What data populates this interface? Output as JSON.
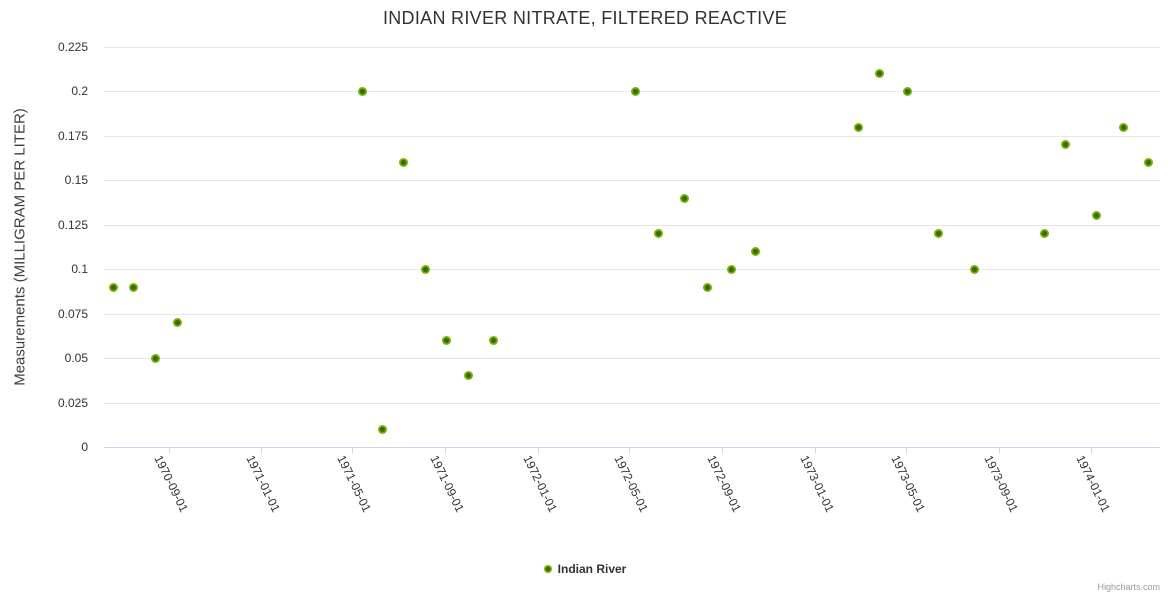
{
  "title": "INDIAN RIVER NITRATE, FILTERED REACTIVE",
  "legend": {
    "series_label": "Indian River"
  },
  "credit": "Highcharts.com",
  "colors": {
    "marker_outer": "#7cb302",
    "marker_inner": "#2f6b02",
    "gridline": "#e6e6e6",
    "axis_line": "#ccd6eb",
    "title_text": "#333333",
    "label_text": "#333333",
    "credit_text": "#9a9aa0"
  },
  "chart_data": {
    "type": "scatter",
    "title": "INDIAN RIVER NITRATE, FILTERED REACTIVE",
    "xlabel": "",
    "ylabel": "Measurements (MILLIGRAM PER LITER)",
    "ylim": [
      0,
      0.225
    ],
    "y_tick_interval": 0.025,
    "y_ticks": [
      {
        "value": 0,
        "label": "0"
      },
      {
        "value": 0.025,
        "label": "0.025"
      },
      {
        "value": 0.05,
        "label": "0.05"
      },
      {
        "value": 0.075,
        "label": "0.075"
      },
      {
        "value": 0.1,
        "label": "0.1"
      },
      {
        "value": 0.125,
        "label": "0.125"
      },
      {
        "value": 0.15,
        "label": "0.15"
      },
      {
        "value": 0.175,
        "label": "0.175"
      },
      {
        "value": 0.2,
        "label": "0.2"
      },
      {
        "value": 0.225,
        "label": "0.225"
      }
    ],
    "xlim": [
      "1970-06-07",
      "1974-04-02"
    ],
    "x_ticks": [
      "1970-09-01",
      "1971-01-01",
      "1971-05-01",
      "1971-09-01",
      "1972-01-01",
      "1972-05-01",
      "1972-09-01",
      "1973-01-01",
      "1973-05-01",
      "1973-09-01",
      "1974-01-01"
    ],
    "grid": "horizontal-only",
    "legend_position": "bottom-center",
    "series": [
      {
        "name": "Indian River",
        "points": [
          {
            "date": "1970-06-19",
            "value": 0.09
          },
          {
            "date": "1970-07-16",
            "value": 0.09
          },
          {
            "date": "1970-08-14",
            "value": 0.05
          },
          {
            "date": "1970-09-12",
            "value": 0.07
          },
          {
            "date": "1971-05-14",
            "value": 0.2
          },
          {
            "date": "1971-06-10",
            "value": 0.01
          },
          {
            "date": "1971-07-08",
            "value": 0.16
          },
          {
            "date": "1971-08-06",
            "value": 0.1
          },
          {
            "date": "1971-09-02",
            "value": 0.06
          },
          {
            "date": "1971-10-01",
            "value": 0.04
          },
          {
            "date": "1971-11-04",
            "value": 0.06
          },
          {
            "date": "1972-05-09",
            "value": 0.2
          },
          {
            "date": "1972-06-08",
            "value": 0.12
          },
          {
            "date": "1972-07-13",
            "value": 0.14
          },
          {
            "date": "1972-08-12",
            "value": 0.09
          },
          {
            "date": "1972-09-13",
            "value": 0.1
          },
          {
            "date": "1972-10-14",
            "value": 0.11
          },
          {
            "date": "1973-02-28",
            "value": 0.18
          },
          {
            "date": "1973-03-28",
            "value": 0.21
          },
          {
            "date": "1973-05-04",
            "value": 0.2
          },
          {
            "date": "1973-06-14",
            "value": 0.12
          },
          {
            "date": "1973-07-31",
            "value": 0.1
          },
          {
            "date": "1973-10-31",
            "value": 0.12
          },
          {
            "date": "1973-11-28",
            "value": 0.17
          },
          {
            "date": "1974-01-08",
            "value": 0.13
          },
          {
            "date": "1974-02-13",
            "value": 0.18
          },
          {
            "date": "1974-03-18",
            "value": 0.16
          }
        ]
      }
    ]
  }
}
